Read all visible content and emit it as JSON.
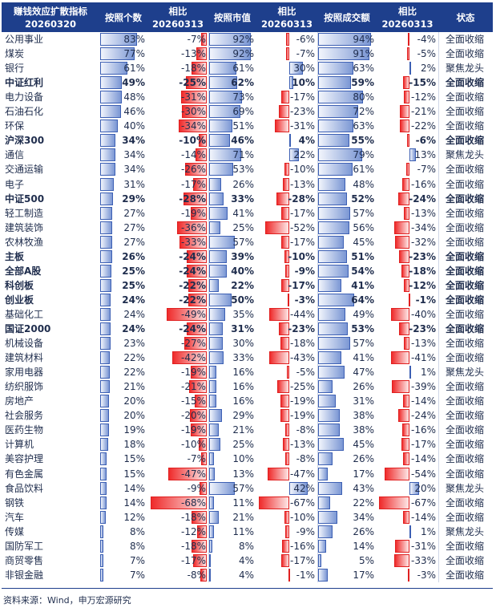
{
  "headers": {
    "board": [
      "赚钱效应扩散指标",
      "20260320"
    ],
    "cnt": [
      "按照个数"
    ],
    "cnt_chg": [
      "相比",
      "20260313"
    ],
    "mv": [
      "按照市值"
    ],
    "mv_chg": [
      "相比",
      "20260313"
    ],
    "amt": [
      "按照成交额"
    ],
    "amt_chg": [
      "相比",
      "20260313"
    ],
    "status": [
      "状态"
    ]
  },
  "rows": [
    {
      "name": "公用事业",
      "cnt": 83,
      "cnt_chg": -7,
      "mv": 92,
      "mv_chg": -6,
      "amt": 94,
      "amt_chg": -4,
      "status": "全面收缩",
      "bold": false
    },
    {
      "name": "煤炭",
      "cnt": 77,
      "cnt_chg": -13,
      "mv": 92,
      "mv_chg": -7,
      "amt": 91,
      "amt_chg": -5,
      "status": "全面收缩",
      "bold": false
    },
    {
      "name": "银行",
      "cnt": 61,
      "cnt_chg": -18,
      "mv": 61,
      "mv_chg": 30,
      "amt": 63,
      "amt_chg": 2,
      "status": "聚焦龙头",
      "bold": false
    },
    {
      "name": "中证红利",
      "cnt": 49,
      "cnt_chg": -25,
      "mv": 62,
      "mv_chg": 10,
      "amt": 59,
      "amt_chg": -15,
      "status": "全面收缩",
      "bold": true
    },
    {
      "name": "电力设备",
      "cnt": 48,
      "cnt_chg": -31,
      "mv": 73,
      "mv_chg": -17,
      "amt": 80,
      "amt_chg": -12,
      "status": "全面收缩",
      "bold": false
    },
    {
      "name": "石油石化",
      "cnt": 46,
      "cnt_chg": -30,
      "mv": 69,
      "mv_chg": -23,
      "amt": 72,
      "amt_chg": -21,
      "status": "全面收缩",
      "bold": false
    },
    {
      "name": "环保",
      "cnt": 40,
      "cnt_chg": -34,
      "mv": 51,
      "mv_chg": -31,
      "amt": 63,
      "amt_chg": -22,
      "status": "全面收缩",
      "bold": false
    },
    {
      "name": "沪深300",
      "cnt": 34,
      "cnt_chg": -10,
      "mv": 46,
      "mv_chg": 4,
      "amt": 55,
      "amt_chg": -6,
      "status": "全面收缩",
      "bold": true
    },
    {
      "name": "通信",
      "cnt": 34,
      "cnt_chg": -14,
      "mv": 71,
      "mv_chg": 22,
      "amt": 79,
      "amt_chg": 13,
      "status": "聚焦龙头",
      "bold": false
    },
    {
      "name": "交通运输",
      "cnt": 34,
      "cnt_chg": -26,
      "mv": 53,
      "mv_chg": -10,
      "amt": 61,
      "amt_chg": -7,
      "status": "全面收缩",
      "bold": false
    },
    {
      "name": "电子",
      "cnt": 31,
      "cnt_chg": -17,
      "mv": 26,
      "mv_chg": -13,
      "amt": 48,
      "amt_chg": -16,
      "status": "全面收缩",
      "bold": false
    },
    {
      "name": "中证500",
      "cnt": 29,
      "cnt_chg": -28,
      "mv": 33,
      "mv_chg": -28,
      "amt": 52,
      "amt_chg": -24,
      "status": "全面收缩",
      "bold": true
    },
    {
      "name": "轻工制造",
      "cnt": 27,
      "cnt_chg": -19,
      "mv": 41,
      "mv_chg": -17,
      "amt": 57,
      "amt_chg": -13,
      "status": "全面收缩",
      "bold": false
    },
    {
      "name": "建筑装饰",
      "cnt": 27,
      "cnt_chg": -36,
      "mv": 25,
      "mv_chg": -52,
      "amt": 56,
      "amt_chg": -34,
      "status": "全面收缩",
      "bold": false
    },
    {
      "name": "农林牧渔",
      "cnt": 27,
      "cnt_chg": -33,
      "mv": 57,
      "mv_chg": -17,
      "amt": 45,
      "amt_chg": -32,
      "status": "全面收缩",
      "bold": false
    },
    {
      "name": "主板",
      "cnt": 26,
      "cnt_chg": -24,
      "mv": 39,
      "mv_chg": -10,
      "amt": 51,
      "amt_chg": -23,
      "status": "全面收缩",
      "bold": true
    },
    {
      "name": "全部A股",
      "cnt": 25,
      "cnt_chg": -24,
      "mv": 40,
      "mv_chg": -9,
      "amt": 54,
      "amt_chg": -18,
      "status": "全面收缩",
      "bold": true
    },
    {
      "name": "科创板",
      "cnt": 25,
      "cnt_chg": -22,
      "mv": 22,
      "mv_chg": -17,
      "amt": 41,
      "amt_chg": -12,
      "status": "全面收缩",
      "bold": true
    },
    {
      "name": "创业板",
      "cnt": 24,
      "cnt_chg": -22,
      "mv": 50,
      "mv_chg": -3,
      "amt": 64,
      "amt_chg": -1,
      "status": "全面收缩",
      "bold": true
    },
    {
      "name": "基础化工",
      "cnt": 24,
      "cnt_chg": -49,
      "mv": 35,
      "mv_chg": -44,
      "amt": 49,
      "amt_chg": -40,
      "status": "全面收缩",
      "bold": false
    },
    {
      "name": "国证2000",
      "cnt": 24,
      "cnt_chg": -24,
      "mv": 31,
      "mv_chg": -23,
      "amt": 53,
      "amt_chg": -23,
      "status": "全面收缩",
      "bold": true
    },
    {
      "name": "机械设备",
      "cnt": 23,
      "cnt_chg": -27,
      "mv": 30,
      "mv_chg": -18,
      "amt": 57,
      "amt_chg": -13,
      "status": "全面收缩",
      "bold": false
    },
    {
      "name": "建筑材料",
      "cnt": 22,
      "cnt_chg": -42,
      "mv": 33,
      "mv_chg": -43,
      "amt": 41,
      "amt_chg": -41,
      "status": "全面收缩",
      "bold": false
    },
    {
      "name": "家用电器",
      "cnt": 22,
      "cnt_chg": -19,
      "mv": 16,
      "mv_chg": -5,
      "amt": 47,
      "amt_chg": 1,
      "status": "聚焦龙头",
      "bold": false
    },
    {
      "name": "纺织服饰",
      "cnt": 21,
      "cnt_chg": -21,
      "mv": 16,
      "mv_chg": -25,
      "amt": 26,
      "amt_chg": -39,
      "status": "全面收缩",
      "bold": false
    },
    {
      "name": "房地产",
      "cnt": 20,
      "cnt_chg": -15,
      "mv": 16,
      "mv_chg": -19,
      "amt": 31,
      "amt_chg": -14,
      "status": "全面收缩",
      "bold": false
    },
    {
      "name": "社会服务",
      "cnt": 20,
      "cnt_chg": -20,
      "mv": 29,
      "mv_chg": -19,
      "amt": 38,
      "amt_chg": -24,
      "status": "全面收缩",
      "bold": false
    },
    {
      "name": "医药生物",
      "cnt": 19,
      "cnt_chg": -19,
      "mv": 21,
      "mv_chg": -8,
      "amt": 38,
      "amt_chg": -16,
      "status": "全面收缩",
      "bold": false
    },
    {
      "name": "计算机",
      "cnt": 18,
      "cnt_chg": -10,
      "mv": 25,
      "mv_chg": -13,
      "amt": 45,
      "amt_chg": -17,
      "status": "全面收缩",
      "bold": false
    },
    {
      "name": "美容护理",
      "cnt": 15,
      "cnt_chg": -7,
      "mv": 10,
      "mv_chg": -8,
      "amt": 26,
      "amt_chg": -14,
      "status": "全面收缩",
      "bold": false
    },
    {
      "name": "有色金属",
      "cnt": 15,
      "cnt_chg": -47,
      "mv": 13,
      "mv_chg": -47,
      "amt": 17,
      "amt_chg": -54,
      "status": "全面收缩",
      "bold": false
    },
    {
      "name": "食品饮料",
      "cnt": 14,
      "cnt_chg": -9,
      "mv": 57,
      "mv_chg": 42,
      "amt": 43,
      "amt_chg": 20,
      "status": "聚焦龙头",
      "bold": false
    },
    {
      "name": "钢铁",
      "cnt": 14,
      "cnt_chg": -68,
      "mv": 11,
      "mv_chg": -67,
      "amt": 22,
      "amt_chg": -67,
      "status": "全面收缩",
      "bold": false
    },
    {
      "name": "汽车",
      "cnt": 12,
      "cnt_chg": -18,
      "mv": 21,
      "mv_chg": -10,
      "amt": 34,
      "amt_chg": -14,
      "status": "全面收缩",
      "bold": false
    },
    {
      "name": "传媒",
      "cnt": 8,
      "cnt_chg": -12,
      "mv": 11,
      "mv_chg": -9,
      "amt": 26,
      "amt_chg": 1,
      "status": "聚焦龙头",
      "bold": false
    },
    {
      "name": "国防军工",
      "cnt": 8,
      "cnt_chg": -18,
      "mv": 8,
      "mv_chg": -16,
      "amt": 14,
      "amt_chg": -31,
      "status": "全面收缩",
      "bold": false
    },
    {
      "name": "商贸零售",
      "cnt": 7,
      "cnt_chg": -17,
      "mv": 4,
      "mv_chg": -17,
      "amt": 5,
      "amt_chg": -33,
      "status": "全面收缩",
      "bold": false
    },
    {
      "name": "非银金融",
      "cnt": 7,
      "cnt_chg": -8,
      "mv": 4,
      "mv_chg": -1,
      "amt": 17,
      "amt_chg": -3,
      "status": "全面收缩",
      "bold": false
    }
  ],
  "footer": {
    "source": "资料来源：Wind，申万宏源研究"
  },
  "colors": {
    "header_bg": "#1e3f8c",
    "positive_bar": "#3c5fb3",
    "negative_bar": "#e02020"
  }
}
